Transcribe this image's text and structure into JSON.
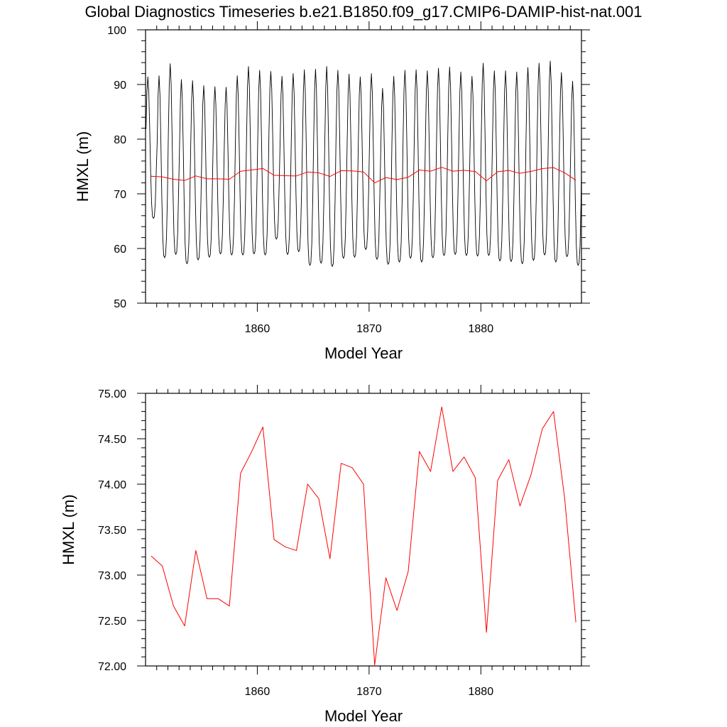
{
  "title": "Global Diagnostics Timeseries b.e21.B1850.f09_g17.CMIP6-DAMIP-hist-nat.001",
  "colors": {
    "monthly": "#000000",
    "annual": "#ff0000",
    "axes": "#000000"
  },
  "chart_data": [
    {
      "type": "line",
      "xlabel": "Model Year",
      "ylabel": "HMXL (m)",
      "xlim": [
        1850,
        1889
      ],
      "ylim": [
        50,
        100
      ],
      "xticks": [
        1860,
        1870,
        1880
      ],
      "yticks": [
        50,
        60,
        70,
        80,
        90,
        100
      ],
      "ytick_labels": [
        "50",
        "60",
        "70",
        "80",
        "90",
        "100"
      ],
      "series": [
        {
          "key": "monthly",
          "x_start": 1850.04,
          "x_step_months": 1,
          "annual_maxima": [
            91.4,
            91.6,
            93.8,
            90.9,
            90.7,
            89.8,
            89.6,
            89.5,
            91.6,
            93.3,
            92.6,
            92.4,
            91.5,
            92.0,
            92.7,
            92.8,
            93.3,
            92.6,
            91.9,
            91.4,
            92.0,
            89.3,
            91.5,
            92.6,
            92.7,
            92.5,
            93.0,
            93.2,
            92.3,
            91.5,
            93.9,
            92.5,
            92.5,
            92.3,
            93.1,
            93.9,
            94.3,
            92.2,
            90.6,
            89.2
          ],
          "annual_minima": [
            65.5,
            58.3,
            58.9,
            57.2,
            57.9,
            58.4,
            59.0,
            58.8,
            58.8,
            59.0,
            58.8,
            61.7,
            58.9,
            59.4,
            56.9,
            57.3,
            56.7,
            58.2,
            58.4,
            59.8,
            58.0,
            57.1,
            57.5,
            58.2,
            57.5,
            58.3,
            58.7,
            58.9,
            58.7,
            58.6,
            58.7,
            57.7,
            57.6,
            57.2,
            57.8,
            58.8,
            57.5,
            58.5,
            56.9,
            63.9
          ]
        },
        {
          "key": "annual",
          "x": [
            1850.5,
            1851.5,
            1852.5,
            1853.5,
            1854.5,
            1855.5,
            1856.5,
            1857.5,
            1858.5,
            1859.5,
            1860.5,
            1861.5,
            1862.5,
            1863.5,
            1864.5,
            1865.5,
            1866.5,
            1867.5,
            1868.5,
            1869.5,
            1870.5,
            1871.5,
            1872.5,
            1873.5,
            1874.5,
            1875.5,
            1876.5,
            1877.5,
            1878.5,
            1879.5,
            1880.5,
            1881.5,
            1882.5,
            1883.5,
            1884.5,
            1885.5,
            1886.5,
            1887.5,
            1888.5
          ],
          "values": [
            73.21,
            73.1,
            72.66,
            72.44,
            73.27,
            72.74,
            72.74,
            72.66,
            74.12,
            74.36,
            74.63,
            73.39,
            73.31,
            73.27,
            74.0,
            73.84,
            73.18,
            74.23,
            74.18,
            74.0,
            72.01,
            72.97,
            72.61,
            73.04,
            74.36,
            74.14,
            74.85,
            74.14,
            74.3,
            74.07,
            72.37,
            74.04,
            74.27,
            73.76,
            74.11,
            74.61,
            74.8,
            73.84,
            72.48
          ]
        }
      ]
    },
    {
      "type": "line",
      "xlabel": "Model Year",
      "ylabel": "HMXL (m)",
      "xlim": [
        1850,
        1889
      ],
      "ylim": [
        72,
        75
      ],
      "xticks": [
        1860,
        1870,
        1880
      ],
      "yticks": [
        72,
        72.5,
        73,
        73.5,
        74,
        74.5,
        75
      ],
      "ytick_labels": [
        "72.00",
        "72.50",
        "73.00",
        "73.50",
        "74.00",
        "74.50",
        "75.00"
      ],
      "series": [
        {
          "key": "annual",
          "x": [
            1850.5,
            1851.5,
            1852.5,
            1853.5,
            1854.5,
            1855.5,
            1856.5,
            1857.5,
            1858.5,
            1859.5,
            1860.5,
            1861.5,
            1862.5,
            1863.5,
            1864.5,
            1865.5,
            1866.5,
            1867.5,
            1868.5,
            1869.5,
            1870.5,
            1871.5,
            1872.5,
            1873.5,
            1874.5,
            1875.5,
            1876.5,
            1877.5,
            1878.5,
            1879.5,
            1880.5,
            1881.5,
            1882.5,
            1883.5,
            1884.5,
            1885.5,
            1886.5,
            1887.5,
            1888.5
          ],
          "values": [
            73.21,
            73.1,
            72.66,
            72.44,
            73.27,
            72.74,
            72.74,
            72.66,
            74.12,
            74.36,
            74.63,
            73.39,
            73.31,
            73.27,
            74.0,
            73.84,
            73.18,
            74.23,
            74.18,
            74.0,
            72.01,
            72.97,
            72.61,
            73.04,
            74.36,
            74.14,
            74.85,
            74.14,
            74.3,
            74.07,
            72.37,
            74.04,
            74.27,
            73.76,
            74.11,
            74.61,
            74.8,
            73.84,
            72.48
          ]
        }
      ]
    }
  ]
}
